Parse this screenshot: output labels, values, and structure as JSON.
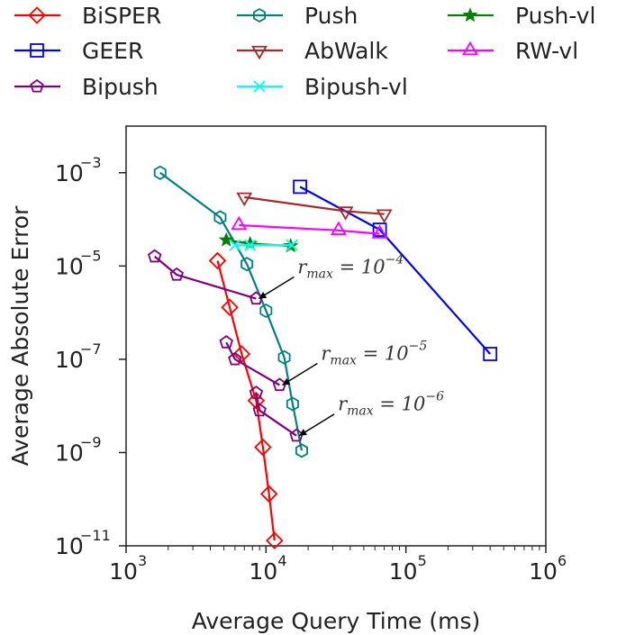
{
  "chart_data": {
    "type": "line",
    "title": "",
    "xlabel": "Average Query Time (ms)",
    "ylabel": "Average Absolute Error",
    "xscale": "log",
    "yscale": "log",
    "xlim": [
      1000,
      1000000
    ],
    "ylim": [
      1e-11,
      0.01
    ],
    "grid": false,
    "legend_position": "top",
    "x_ticks": [
      {
        "base": "10",
        "exp": "3",
        "value": 1000
      },
      {
        "base": "10",
        "exp": "4",
        "value": 10000
      },
      {
        "base": "10",
        "exp": "5",
        "value": 100000
      },
      {
        "base": "10",
        "exp": "6",
        "value": 1000000
      }
    ],
    "y_ticks": [
      {
        "base": "10",
        "exp": "−3",
        "value": 0.001
      },
      {
        "base": "10",
        "exp": "−5",
        "value": 1e-05
      },
      {
        "base": "10",
        "exp": "−7",
        "value": 1e-07
      },
      {
        "base": "10",
        "exp": "−9",
        "value": 1e-09
      },
      {
        "base": "10",
        "exp": "−11",
        "value": 1e-11
      }
    ],
    "series": [
      {
        "name": "BiSPER",
        "color": "#ff0000",
        "marker": "diamond",
        "points": [
          [
            4500,
            1.3e-05
          ],
          [
            5500,
            1.3e-06
          ],
          [
            6700,
            1.3e-07
          ],
          [
            8500,
            1.3e-08
          ],
          [
            9500,
            1.3e-09
          ],
          [
            10500,
            1.3e-10
          ],
          [
            11500,
            1.3e-11
          ]
        ]
      },
      {
        "name": "Push",
        "color": "#008080",
        "marker": "hexagon",
        "points": [
          [
            1750,
            0.001
          ],
          [
            4700,
            0.00011
          ],
          [
            7300,
            1.1e-05
          ],
          [
            10000,
            1.1e-06
          ],
          [
            13500,
            1.1e-07
          ],
          [
            15500,
            1.1e-08
          ],
          [
            18000,
            1.1e-09
          ]
        ]
      },
      {
        "name": "Push-vl",
        "color": "#008000",
        "marker": "star",
        "points": [
          [
            5200,
            3.6e-05
          ],
          [
            7700,
            3e-05
          ],
          [
            15000,
            2.7e-05
          ]
        ]
      },
      {
        "name": "GEER",
        "color": "#0000ff",
        "marker": "square",
        "points": [
          [
            17500,
            0.0005
          ],
          [
            65000,
            6e-05
          ],
          [
            400000,
            1.3e-07
          ]
        ]
      },
      {
        "name": "AbWalk",
        "color": "#a52a2a",
        "marker": "triangle-down",
        "points": [
          [
            7000,
            0.0003
          ],
          [
            37000,
            0.00015
          ],
          [
            70000,
            0.00013
          ]
        ]
      },
      {
        "name": "RW-vl",
        "color": "#ff00ff",
        "marker": "triangle-up",
        "points": [
          [
            6400,
            7.5e-05
          ],
          [
            33000,
            5.8e-05
          ],
          [
            65000,
            4.9e-05
          ]
        ]
      },
      {
        "name": "Bipush",
        "color": "#800080",
        "marker": "pentagon",
        "points": [
          [
            1600,
            1.6e-05
          ],
          [
            2300,
            6.5e-06
          ],
          [
            8500,
            2e-06
          ]
        ],
        "branches": [
          [
            [
              5200,
              2.3e-07
            ],
            [
              6000,
              1e-07
            ],
            [
              12500,
              2.8e-08
            ]
          ],
          [
            [
              8500,
              1.9e-08
            ],
            [
              9000,
              8e-09
            ],
            [
              16500,
              2.3e-09
            ]
          ]
        ]
      },
      {
        "name": "Bipush-vl",
        "color": "#00ffff",
        "marker": "x",
        "points": [
          [
            6000,
            2.8e-05
          ],
          [
            7700,
            2.8e-05
          ],
          [
            15300,
            2.8e-05
          ]
        ]
      }
    ],
    "annotations": [
      {
        "var": "r",
        "sub": "max",
        "eq": " = 10",
        "exp": "−4",
        "x": 8500,
        "y": 2e-06
      },
      {
        "var": "r",
        "sub": "max",
        "eq": " = 10",
        "exp": "−5",
        "x": 12500,
        "y": 2.8e-08
      },
      {
        "var": "r",
        "sub": "max",
        "eq": " = 10",
        "exp": "−6",
        "x": 16500,
        "y": 2.3e-09
      }
    ]
  }
}
